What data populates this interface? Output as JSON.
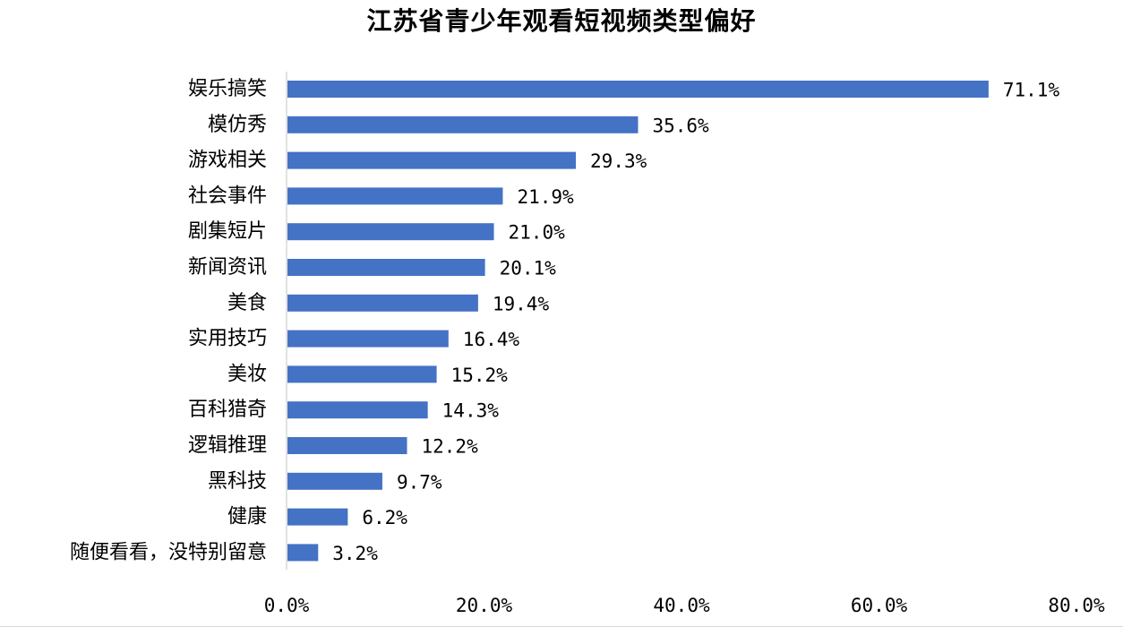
{
  "chart_data": {
    "type": "bar",
    "orientation": "horizontal",
    "title": "江苏省青少年观看短视频类型偏好",
    "categories": [
      "娱乐搞笑",
      "模仿秀",
      "游戏相关",
      "社会事件",
      "剧集短片",
      "新闻资讯",
      "美食",
      "实用技巧",
      "美妆",
      "百科猎奇",
      "逻辑推理",
      "黑科技",
      "健康",
      "随便看看，没特别留意"
    ],
    "values": [
      71.1,
      35.6,
      29.3,
      21.9,
      21.0,
      20.1,
      19.4,
      16.4,
      15.2,
      14.3,
      12.2,
      9.7,
      6.2,
      3.2
    ],
    "value_labels": [
      "71.1%",
      "35.6%",
      "29.3%",
      "21.9%",
      "21.0%",
      "20.1%",
      "19.4%",
      "16.4%",
      "15.2%",
      "14.3%",
      "12.2%",
      "9.7%",
      "6.2%",
      "3.2%"
    ],
    "x_ticks": [
      0,
      20,
      40,
      60,
      80
    ],
    "x_tick_labels": [
      "0.0%",
      "20.0%",
      "40.0%",
      "60.0%",
      "80.0%"
    ],
    "xlim": [
      0,
      80
    ],
    "xlabel": "",
    "ylabel": "",
    "grid": false,
    "legend": "none",
    "bar_color": "#4472C4",
    "axis_color": "#d9d9d9"
  }
}
